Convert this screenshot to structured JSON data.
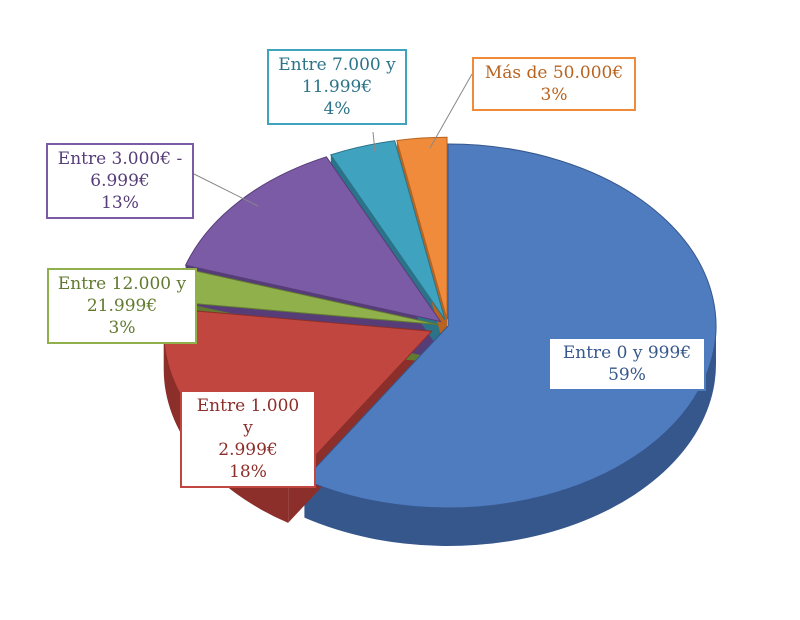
{
  "chart_data": {
    "type": "pie",
    "title": "",
    "slices": [
      {
        "lines": [
          "Entre 0 y 999€"
        ],
        "pct_label": "59%",
        "value": 59,
        "color": "#4f7bbf",
        "dark": "#36578c",
        "border": "#4f7bbf"
      },
      {
        "lines": [
          "Entre 1.000 y",
          "2.999€"
        ],
        "pct_label": "18%",
        "value": 18,
        "color": "#c0463f",
        "dark": "#8c2e2a",
        "border": "#c0463f"
      },
      {
        "lines": [
          "Entre 12.000 y",
          "21.999€"
        ],
        "pct_label": "3%",
        "value": 3,
        "color": "#8fb04a",
        "dark": "#627a30",
        "border": "#8fb04a"
      },
      {
        "lines": [
          "Entre 3.000€ -",
          "6.999€"
        ],
        "pct_label": "13%",
        "value": 13,
        "color": "#7b5ba6",
        "dark": "#563d78",
        "border": "#7b5ba6"
      },
      {
        "lines": [
          "Entre 7.000 y",
          "11.999€"
        ],
        "pct_label": "4%",
        "value": 4,
        "color": "#3fa3c0",
        "dark": "#2b7388",
        "border": "#3fa3c0"
      },
      {
        "lines": [
          "Más de 50.000€"
        ],
        "pct_label": "3%",
        "value": 3,
        "color": "#ef8b3a",
        "dark": "#b8631f",
        "border": "#ef8b3a"
      }
    ]
  }
}
